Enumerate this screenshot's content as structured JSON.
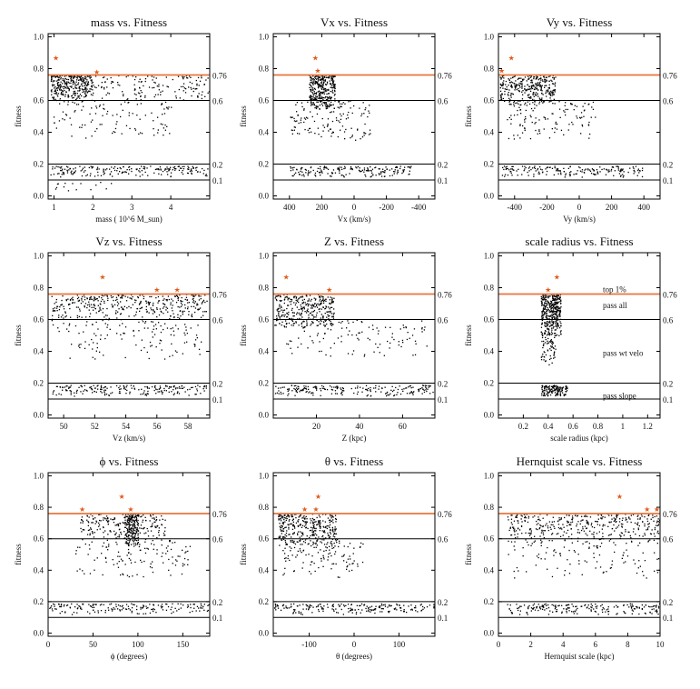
{
  "colors": {
    "accent_line": "#e8743b",
    "star": "#e05a1a",
    "ink": "#000000"
  },
  "chart_data": [
    {
      "type": "scatter",
      "title": "mass vs. Fitness",
      "xlabel": "mass ( 10^6 M_sun)",
      "ylabel": "fitness",
      "xlim": [
        0.85,
        5.0
      ],
      "ylim": [
        -0.02,
        1.02
      ],
      "xticks": [
        1,
        2,
        3,
        4
      ],
      "yticks": [
        0.0,
        0.2,
        0.4,
        0.6,
        0.8,
        1.0
      ],
      "hlines": [
        {
          "value": 0.76,
          "label": "0.76",
          "color": "#e8743b"
        },
        {
          "value": 0.6,
          "label": "0.6",
          "color": "#000000"
        },
        {
          "value": 0.2,
          "label": "0.2",
          "color": "#000000"
        },
        {
          "value": 0.1,
          "label": "0.1",
          "color": "#000000"
        }
      ],
      "stars": [
        [
          1.05,
          0.87
        ],
        [
          2.1,
          0.78
        ]
      ],
      "clusters": [
        {
          "x": [
            0.9,
            2.0
          ],
          "y": [
            0.6,
            0.76
          ],
          "n": 260
        },
        {
          "x": [
            0.9,
            5.0
          ],
          "y": [
            0.6,
            0.76
          ],
          "n": 200
        },
        {
          "x": [
            0.9,
            4.0
          ],
          "y": [
            0.35,
            0.6
          ],
          "n": 110
        },
        {
          "x": [
            0.9,
            5.0
          ],
          "y": [
            0.12,
            0.19
          ],
          "n": 200
        },
        {
          "x": [
            0.9,
            2.5
          ],
          "y": [
            0.02,
            0.09
          ],
          "n": 15
        }
      ],
      "grid": false
    },
    {
      "type": "scatter",
      "title": "Vx vs. Fitness",
      "xlabel": "Vx (km/s)",
      "ylabel": "fitness",
      "xlim": [
        500,
        -500
      ],
      "ylim": [
        -0.02,
        1.02
      ],
      "xticks": [
        400,
        200,
        0,
        -200,
        -400
      ],
      "yticks": [
        0.0,
        0.2,
        0.4,
        0.6,
        0.8,
        1.0
      ],
      "hlines": [
        {
          "value": 0.76,
          "label": "0.76",
          "color": "#e8743b"
        },
        {
          "value": 0.6,
          "label": "0.6",
          "color": "#000000"
        },
        {
          "value": 0.2,
          "label": "0.2",
          "color": "#000000"
        },
        {
          "value": 0.1,
          "label": "0.1",
          "color": "#000000"
        }
      ],
      "stars": [
        [
          240,
          0.87
        ],
        [
          225,
          0.79
        ]
      ],
      "clusters": [
        {
          "x": [
            120,
            280
          ],
          "y": [
            0.55,
            0.76
          ],
          "n": 330
        },
        {
          "x": [
            -100,
            400
          ],
          "y": [
            0.35,
            0.6
          ],
          "n": 140
        },
        {
          "x": [
            -350,
            400
          ],
          "y": [
            0.12,
            0.19
          ],
          "n": 180
        }
      ],
      "grid": false
    },
    {
      "type": "scatter",
      "title": "Vy vs. Fitness",
      "xlabel": "Vy (km/s)",
      "ylabel": "fitness",
      "xlim": [
        -500,
        500
      ],
      "ylim": [
        -0.02,
        1.02
      ],
      "xticks": [
        -400,
        -200,
        0,
        200,
        400
      ],
      "yticks": [
        0.0,
        0.2,
        0.4,
        0.6,
        0.8,
        1.0
      ],
      "hlines": [
        {
          "value": 0.76,
          "label": "0.76",
          "color": "#e8743b"
        },
        {
          "value": 0.6,
          "label": "0.6",
          "color": "#000000"
        },
        {
          "value": 0.2,
          "label": "0.2",
          "color": "#000000"
        },
        {
          "value": 0.1,
          "label": "0.1",
          "color": "#000000"
        }
      ],
      "stars": [
        [
          -420,
          0.87
        ],
        [
          -480,
          0.79
        ]
      ],
      "clusters": [
        {
          "x": [
            -500,
            -150
          ],
          "y": [
            0.58,
            0.76
          ],
          "n": 330
        },
        {
          "x": [
            -450,
            100
          ],
          "y": [
            0.35,
            0.6
          ],
          "n": 130
        },
        {
          "x": [
            -500,
            400
          ],
          "y": [
            0.12,
            0.19
          ],
          "n": 180
        }
      ],
      "grid": false
    },
    {
      "type": "scatter",
      "title": "Vz vs. Fitness",
      "xlabel": "Vz (km/s)",
      "ylabel": "fitness",
      "xlim": [
        49,
        59.4
      ],
      "ylim": [
        -0.02,
        1.02
      ],
      "xticks": [
        50,
        52,
        54,
        56,
        58
      ],
      "yticks": [
        0.0,
        0.2,
        0.4,
        0.6,
        0.8,
        1.0
      ],
      "hlines": [
        {
          "value": 0.76,
          "label": "0.76",
          "color": "#e8743b"
        },
        {
          "value": 0.6,
          "label": "0.6",
          "color": "#000000"
        },
        {
          "value": 0.2,
          "label": "0.2",
          "color": "#000000"
        },
        {
          "value": 0.1,
          "label": "0.1",
          "color": "#000000"
        }
      ],
      "stars": [
        [
          52.5,
          0.87
        ],
        [
          56.0,
          0.79
        ],
        [
          57.3,
          0.79
        ]
      ],
      "clusters": [
        {
          "x": [
            49.2,
            59.2
          ],
          "y": [
            0.6,
            0.76
          ],
          "n": 380
        },
        {
          "x": [
            49.2,
            59.2
          ],
          "y": [
            0.35,
            0.6
          ],
          "n": 130
        },
        {
          "x": [
            49.2,
            59.2
          ],
          "y": [
            0.12,
            0.19
          ],
          "n": 200
        }
      ],
      "grid": false
    },
    {
      "type": "scatter",
      "title": "Z vs. Fitness",
      "xlabel": "Z (kpc)",
      "ylabel": "fitness",
      "xlim": [
        0,
        75
      ],
      "ylim": [
        -0.02,
        1.02
      ],
      "xticks": [
        20,
        40,
        60
      ],
      "yticks": [
        0.0,
        0.2,
        0.4,
        0.6,
        0.8,
        1.0
      ],
      "hlines": [
        {
          "value": 0.76,
          "label": "0.76",
          "color": "#e8743b"
        },
        {
          "value": 0.6,
          "label": "0.6",
          "color": "#000000"
        },
        {
          "value": 0.2,
          "label": "0.2",
          "color": "#000000"
        },
        {
          "value": 0.1,
          "label": "0.1",
          "color": "#000000"
        }
      ],
      "stars": [
        [
          6,
          0.87
        ],
        [
          26,
          0.79
        ]
      ],
      "clusters": [
        {
          "x": [
            0.5,
            28
          ],
          "y": [
            0.55,
            0.76
          ],
          "n": 330
        },
        {
          "x": [
            5,
            72
          ],
          "y": [
            0.35,
            0.6
          ],
          "n": 120
        },
        {
          "x": [
            0.5,
            75
          ],
          "y": [
            0.12,
            0.19
          ],
          "n": 200
        }
      ],
      "grid": false
    },
    {
      "type": "scatter",
      "title": "scale radius vs. Fitness",
      "xlabel": "scale radius (kpc)",
      "ylabel": "fitness",
      "xlim": [
        0,
        1.3
      ],
      "ylim": [
        -0.02,
        1.02
      ],
      "xticks": [
        0.2,
        0.4,
        0.6,
        0.8,
        1.0,
        1.2
      ],
      "yticks": [
        0.0,
        0.2,
        0.4,
        0.6,
        0.8,
        1.0
      ],
      "hlines": [
        {
          "value": 0.76,
          "label": "0.76",
          "color": "#e8743b"
        },
        {
          "value": 0.6,
          "label": "0.6",
          "color": "#000000"
        },
        {
          "value": 0.2,
          "label": "0.2",
          "color": "#000000"
        },
        {
          "value": 0.1,
          "label": "0.1",
          "color": "#000000"
        }
      ],
      "stars": [
        [
          0.47,
          0.87
        ],
        [
          0.4,
          0.79
        ]
      ],
      "clusters": [
        {
          "x": [
            0.34,
            0.5
          ],
          "y": [
            0.5,
            0.76
          ],
          "n": 380
        },
        {
          "x": [
            0.34,
            0.46
          ],
          "y": [
            0.3,
            0.52
          ],
          "n": 70
        },
        {
          "x": [
            0.34,
            0.55
          ],
          "y": [
            0.12,
            0.19
          ],
          "n": 140
        }
      ],
      "annotations": [
        {
          "text": "top 1%",
          "x": 0.84,
          "y": 0.79
        },
        {
          "text": "pass all",
          "x": 0.84,
          "y": 0.69
        },
        {
          "text": "pass wt velo",
          "x": 0.84,
          "y": 0.39
        },
        {
          "text": "pass slope",
          "x": 0.84,
          "y": 0.12
        }
      ],
      "grid": false
    },
    {
      "type": "scatter",
      "title": "ϕ vs. Fitness",
      "xlabel": "ϕ (degrees)",
      "ylabel": "fitness",
      "xlim": [
        0,
        180
      ],
      "ylim": [
        -0.02,
        1.02
      ],
      "xticks": [
        0,
        50,
        100,
        150
      ],
      "yticks": [
        0.0,
        0.2,
        0.4,
        0.6,
        0.8,
        1.0
      ],
      "hlines": [
        {
          "value": 0.76,
          "label": "0.76",
          "color": "#e8743b"
        },
        {
          "value": 0.6,
          "label": "0.6",
          "color": "#000000"
        },
        {
          "value": 0.2,
          "label": "0.2",
          "color": "#000000"
        },
        {
          "value": 0.1,
          "label": "0.1",
          "color": "#000000"
        }
      ],
      "stars": [
        [
          82,
          0.87
        ],
        [
          38,
          0.79
        ],
        [
          92,
          0.79
        ]
      ],
      "clusters": [
        {
          "x": [
            85,
            100
          ],
          "y": [
            0.55,
            0.76
          ],
          "n": 180
        },
        {
          "x": [
            35,
            130
          ],
          "y": [
            0.6,
            0.76
          ],
          "n": 200
        },
        {
          "x": [
            30,
            160
          ],
          "y": [
            0.35,
            0.6
          ],
          "n": 130
        },
        {
          "x": [
            0,
            180
          ],
          "y": [
            0.12,
            0.19
          ],
          "n": 180
        }
      ],
      "grid": false
    },
    {
      "type": "scatter",
      "title": "θ vs. Fitness",
      "xlabel": "θ (degrees)",
      "ylabel": "fitness",
      "xlim": [
        -180,
        180
      ],
      "ylim": [
        -0.02,
        1.02
      ],
      "xticks": [
        -100,
        0,
        100
      ],
      "yticks": [
        0.0,
        0.2,
        0.4,
        0.6,
        0.8,
        1.0
      ],
      "hlines": [
        {
          "value": 0.76,
          "label": "0.76",
          "color": "#e8743b"
        },
        {
          "value": 0.6,
          "label": "0.6",
          "color": "#000000"
        },
        {
          "value": 0.2,
          "label": "0.2",
          "color": "#000000"
        },
        {
          "value": 0.1,
          "label": "0.1",
          "color": "#000000"
        }
      ],
      "stars": [
        [
          -80,
          0.87
        ],
        [
          -110,
          0.79
        ],
        [
          -85,
          0.79
        ]
      ],
      "clusters": [
        {
          "x": [
            -170,
            -40
          ],
          "y": [
            0.55,
            0.76
          ],
          "n": 330
        },
        {
          "x": [
            -160,
            20
          ],
          "y": [
            0.35,
            0.6
          ],
          "n": 120
        },
        {
          "x": [
            -180,
            180
          ],
          "y": [
            0.12,
            0.19
          ],
          "n": 200
        }
      ],
      "grid": false
    },
    {
      "type": "scatter",
      "title": "Hernquist scale vs. Fitness",
      "xlabel": "Hernquist scale (kpc)",
      "ylabel": "fitness",
      "xlim": [
        0,
        10
      ],
      "ylim": [
        -0.02,
        1.02
      ],
      "xticks": [
        0,
        2,
        4,
        6,
        8,
        10
      ],
      "yticks": [
        0.0,
        0.2,
        0.4,
        0.6,
        0.8,
        1.0
      ],
      "hlines": [
        {
          "value": 0.76,
          "label": "0.76",
          "color": "#e8743b"
        },
        {
          "value": 0.6,
          "label": "0.6",
          "color": "#000000"
        },
        {
          "value": 0.2,
          "label": "0.2",
          "color": "#000000"
        },
        {
          "value": 0.1,
          "label": "0.1",
          "color": "#000000"
        }
      ],
      "stars": [
        [
          7.5,
          0.87
        ],
        [
          9.2,
          0.79
        ],
        [
          9.8,
          0.79
        ]
      ],
      "clusters": [
        {
          "x": [
            0.5,
            10
          ],
          "y": [
            0.6,
            0.76
          ],
          "n": 360
        },
        {
          "x": [
            0.5,
            10
          ],
          "y": [
            0.35,
            0.6
          ],
          "n": 130
        },
        {
          "x": [
            0.5,
            10
          ],
          "y": [
            0.12,
            0.19
          ],
          "n": 200
        }
      ],
      "grid": false
    }
  ]
}
